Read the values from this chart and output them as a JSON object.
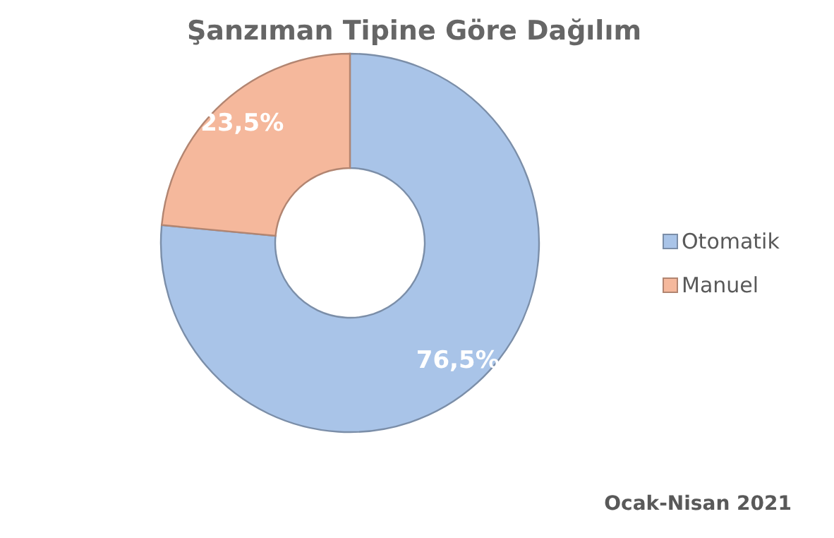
{
  "chart_data": {
    "type": "donut",
    "title": "Şanzıman Tipine Göre Dağılım",
    "categories": [
      "Otomatik",
      "Manuel"
    ],
    "values": [
      76.5,
      23.5
    ],
    "value_labels": [
      "76,5%",
      "23,5%"
    ],
    "colors": [
      "#a9c4e8",
      "#f5b89c"
    ],
    "legend": "right",
    "annotations": [
      "Ocak-Nisan 2021"
    ]
  }
}
